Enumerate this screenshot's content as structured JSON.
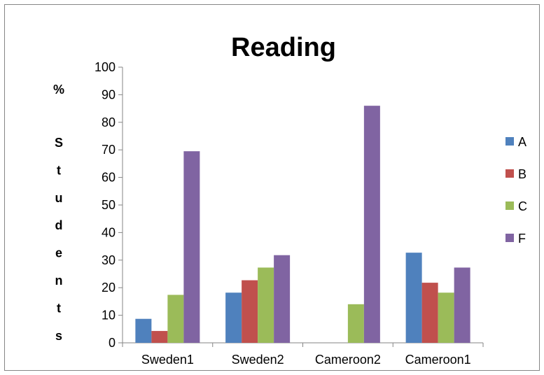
{
  "chart_data": {
    "type": "bar",
    "title": "Reading",
    "ylabel_percent": "%",
    "ylabel_word": "Students",
    "xlabel": "",
    "categories": [
      "Sweden1",
      "Sweden2",
      "Cameroon2",
      "Cameroon1"
    ],
    "series": [
      {
        "name": "A",
        "color": "#4F81BD",
        "values": [
          8.7,
          18.2,
          0,
          32.7
        ]
      },
      {
        "name": "B",
        "color": "#C0504D",
        "values": [
          4.3,
          22.7,
          0,
          21.8
        ]
      },
      {
        "name": "C",
        "color": "#9BBB59",
        "values": [
          17.4,
          27.3,
          14.0,
          18.2
        ]
      },
      {
        "name": "F",
        "color": "#8064A2",
        "values": [
          69.5,
          31.8,
          86.0,
          27.3
        ]
      }
    ],
    "ylim": [
      0,
      100
    ],
    "yticks": [
      "0",
      "10",
      "20",
      "30",
      "40",
      "50",
      "60",
      "70",
      "80",
      "90",
      "100"
    ],
    "grid": false,
    "legend": "right"
  }
}
